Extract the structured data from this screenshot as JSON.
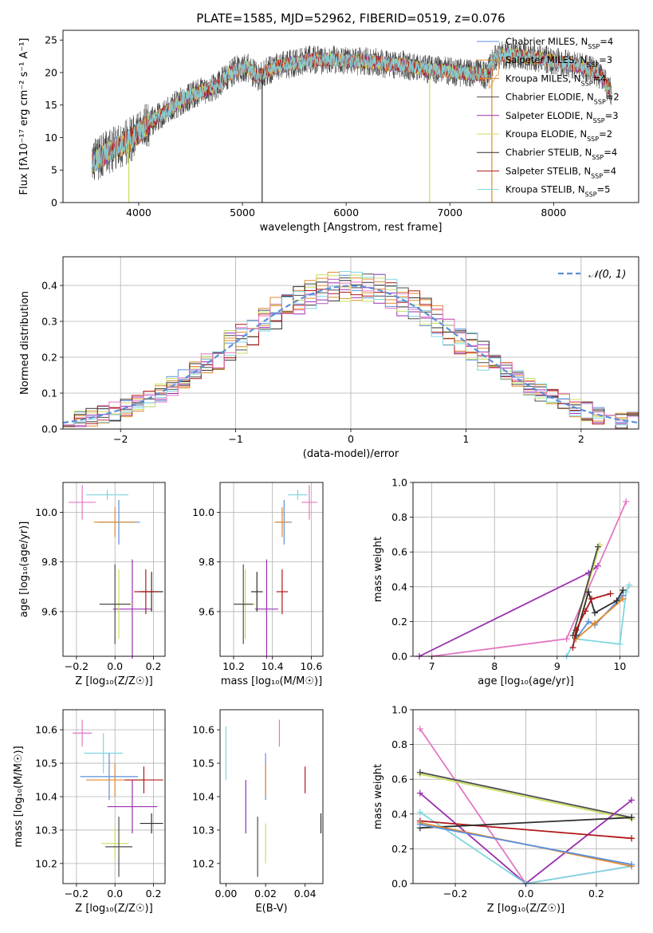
{
  "figure_title": "PLATE=1585, MJD=52962, FIBERID=0519, z=0.076",
  "colors": {
    "chabrier_miles": "#5b8fe0",
    "salpeter_miles": "#e08a2c",
    "kroupa_miles": "#e08a2c",
    "chabrier_elodie": "#4d4d4d",
    "salpeter_elodie": "#9a2fb0",
    "kroupa_elodie": "#c8e060",
    "chabrier_stelib": "#2e2e2e",
    "salpeter_stelib": "#b01818",
    "kroupa_stelib": "#7fd6e0",
    "pink": "#e377c2",
    "gaussian": "#5b8fd8",
    "grid": "#b0b0b0"
  },
  "chart_data": [
    {
      "id": "spectrum",
      "type": "line",
      "title": "PLATE=1585, MJD=52962, FIBERID=0519, z=0.076",
      "xlabel": "wavelength [Angstrom, rest frame]",
      "ylabel": "Flux [fλ10⁻¹⁷ erg cm⁻² s⁻¹ A⁻¹]",
      "xlim": [
        3270,
        8820
      ],
      "ylim": [
        0,
        26.5
      ],
      "xticks": [
        4000,
        5000,
        6000,
        7000,
        8000
      ],
      "yticks": [
        0,
        5,
        10,
        15,
        20,
        25
      ],
      "grid": false,
      "legend_position": "right",
      "anchors": {
        "x": [
          3550,
          3650,
          3750,
          3850,
          3950,
          4050,
          4150,
          4250,
          4350,
          4450,
          4550,
          4650,
          4750,
          4850,
          4950,
          5050,
          5150,
          5250,
          5350,
          5450,
          5550,
          5650,
          5750,
          5850,
          5950,
          6050,
          6150,
          6250,
          6350,
          6450,
          6550,
          6650,
          6750,
          6850,
          6950,
          7050,
          7150,
          7250,
          7350,
          7450,
          7550,
          7650,
          7750,
          7850,
          7950,
          8050,
          8150,
          8250,
          8350,
          8450,
          8550
        ],
        "y": [
          6.0,
          7.2,
          8.2,
          9.0,
          10.0,
          11.5,
          12.8,
          13.8,
          15.0,
          16.0,
          16.8,
          17.3,
          17.8,
          19.5,
          20.5,
          20.8,
          19.2,
          20.3,
          21.0,
          21.3,
          21.6,
          22.0,
          21.9,
          22.0,
          21.9,
          21.8,
          21.7,
          21.7,
          21.4,
          21.2,
          21.2,
          20.8,
          20.6,
          20.4,
          20.3,
          20.1,
          19.9,
          19.8,
          19.6,
          22.6,
          22.7,
          22.6,
          22.4,
          22.2,
          21.9,
          21.6,
          21.3,
          21.0,
          20.5,
          19.6,
          17.0
        ]
      },
      "series": [
        {
          "name": "Chabrier MILES, N_SSP=4",
          "sub": "SSP",
          "value": "=4",
          "label": "Chabrier MILES, N",
          "color_key": "chabrier_miles"
        },
        {
          "name": "Salpeter MILES, N_SSP=3",
          "sub": "SSP",
          "value": "=3",
          "label": "Salpeter MILES, N",
          "color_key": "salpeter_miles"
        },
        {
          "name": "Kroupa MILES, N_SSP=4",
          "sub": "SSP",
          "value": "=4",
          "label": "Kroupa MILES, N",
          "color_key": "kroupa_miles"
        },
        {
          "name": "Chabrier ELODIE, N_SSP=2",
          "sub": "SSP",
          "value": "=2",
          "label": "Chabrier ELODIE, N",
          "color_key": "chabrier_elodie"
        },
        {
          "name": "Salpeter ELODIE, N_SSP=3",
          "sub": "SSP",
          "value": "=3",
          "label": "Salpeter ELODIE, N",
          "color_key": "salpeter_elodie"
        },
        {
          "name": "Kroupa ELODIE, N_SSP=2",
          "sub": "SSP",
          "value": "=2",
          "label": "Kroupa ELODIE, N",
          "color_key": "kroupa_elodie"
        },
        {
          "name": "Chabrier STELIB, N_SSP=4",
          "sub": "SSP",
          "value": "=4",
          "label": "Chabrier STELIB, N",
          "color_key": "chabrier_stelib"
        },
        {
          "name": "Salpeter STELIB, N_SSP=4",
          "sub": "SSP",
          "value": "=4",
          "label": "Salpeter STELIB, N",
          "color_key": "salpeter_stelib"
        },
        {
          "name": "Kroupa STELIB, N_SSP=5",
          "sub": "SSP",
          "value": "=5",
          "label": "Kroupa STELIB, N",
          "color_key": "kroupa_stelib"
        }
      ]
    },
    {
      "id": "residuals",
      "type": "histogram",
      "xlabel": "(data-model)/error",
      "ylabel": "Normed distribution",
      "xlim": [
        -2.5,
        2.5
      ],
      "ylim": [
        0,
        0.48
      ],
      "xticks": [
        -2,
        -1,
        0,
        1,
        2
      ],
      "yticks": [
        0.0,
        0.1,
        0.2,
        0.3,
        0.4
      ],
      "grid": true,
      "legend_position": "top-right",
      "legend_label": "𝒩(0, 1)",
      "bin_width": 0.1,
      "series_color_keys": [
        "chabrier_miles",
        "salpeter_miles",
        "kroupa_miles",
        "chabrier_elodie",
        "salpeter_elodie",
        "kroupa_elodie",
        "chabrier_stelib",
        "salpeter_stelib",
        "kroupa_stelib"
      ]
    },
    {
      "id": "age_vs_Z",
      "type": "scatter",
      "xlabel": "Z [log₁₀(Z/Z☉)]",
      "ylabel": "age  [log₁₀(age/yr)]",
      "xlim": [
        -0.27,
        0.26
      ],
      "ylim": [
        9.42,
        10.12
      ],
      "xticks": [
        -0.2,
        0.0,
        0.2
      ],
      "yticks": [
        9.6,
        9.8,
        10.0
      ],
      "grid": true,
      "points": [
        {
          "x": -0.17,
          "y": 10.04,
          "xerr": 0.07,
          "yerr": 0.07,
          "color_key": "pink"
        },
        {
          "x": -0.04,
          "y": 10.07,
          "xerr": 0.11,
          "yerr": 0.02,
          "color_key": "kroupa_stelib"
        },
        {
          "x": 0.02,
          "y": 9.96,
          "xerr": 0.11,
          "yerr": 0.09,
          "color_key": "chabrier_miles"
        },
        {
          "x": 0.0,
          "y": 9.96,
          "xerr": 0.11,
          "yerr": 0.06,
          "color_key": "salpeter_miles"
        },
        {
          "x": 0.09,
          "y": 9.61,
          "xerr": 0.1,
          "yerr": 0.2,
          "color_key": "salpeter_elodie"
        },
        {
          "x": 0.19,
          "y": 9.68,
          "xerr": 0.06,
          "yerr": 0.08,
          "color_key": "chabrier_stelib"
        },
        {
          "x": 0.16,
          "y": 9.68,
          "xerr": 0.06,
          "yerr": 0.09,
          "color_key": "salpeter_stelib"
        },
        {
          "x": 0.02,
          "y": 9.63,
          "xerr": 0.08,
          "yerr": 0.14,
          "color_key": "kroupa_elodie"
        },
        {
          "x": 0.0,
          "y": 9.63,
          "xerr": 0.08,
          "yerr": 0.16,
          "color_key": "chabrier_elodie"
        }
      ]
    },
    {
      "id": "age_vs_mass",
      "type": "scatter",
      "xlabel": "mass [log₁₀(M/M☉)]",
      "ylabel": "",
      "xlim": [
        10.13,
        10.66
      ],
      "ylim": [
        9.42,
        10.12
      ],
      "xticks": [
        10.2,
        10.4,
        10.6
      ],
      "yticks": [
        9.6,
        9.8,
        10.0
      ],
      "grid": true,
      "points": [
        {
          "x": 10.59,
          "y": 10.04,
          "xerr": 0.04,
          "yerr": 0.07,
          "color_key": "pink"
        },
        {
          "x": 10.53,
          "y": 10.07,
          "xerr": 0.05,
          "yerr": 0.02,
          "color_key": "kroupa_stelib"
        },
        {
          "x": 10.46,
          "y": 9.96,
          "xerr": 0.04,
          "yerr": 0.09,
          "color_key": "chabrier_miles"
        },
        {
          "x": 10.45,
          "y": 9.96,
          "xerr": 0.04,
          "yerr": 0.06,
          "color_key": "salpeter_miles"
        },
        {
          "x": 10.37,
          "y": 9.61,
          "xerr": 0.06,
          "yerr": 0.2,
          "color_key": "salpeter_elodie"
        },
        {
          "x": 10.32,
          "y": 9.68,
          "xerr": 0.03,
          "yerr": 0.08,
          "color_key": "chabrier_stelib"
        },
        {
          "x": 10.45,
          "y": 9.68,
          "xerr": 0.03,
          "yerr": 0.09,
          "color_key": "salpeter_stelib"
        },
        {
          "x": 10.26,
          "y": 9.63,
          "xerr": 0.05,
          "yerr": 0.14,
          "color_key": "kroupa_elodie"
        },
        {
          "x": 10.25,
          "y": 9.63,
          "xerr": 0.05,
          "yerr": 0.16,
          "color_key": "chabrier_elodie"
        }
      ]
    },
    {
      "id": "weight_vs_age",
      "type": "line",
      "xlabel": "age  [log₁₀(age/yr)]",
      "ylabel": "mass weight",
      "xlim": [
        6.7,
        10.3
      ],
      "ylim": [
        0,
        1.0
      ],
      "xticks": [
        7,
        8,
        9,
        10
      ],
      "yticks": [
        0.0,
        0.2,
        0.4,
        0.6,
        0.8,
        1.0
      ],
      "grid": true,
      "series": [
        {
          "color_key": "salpeter_elodie",
          "x": [
            6.8,
            9.5,
            9.65
          ],
          "y": [
            0.0,
            0.48,
            0.52
          ]
        },
        {
          "color_key": "pink",
          "x": [
            7.0,
            9.15,
            10.1
          ],
          "y": [
            0.0,
            0.1,
            0.89
          ]
        },
        {
          "color_key": "kroupa_stelib",
          "x": [
            9.15,
            9.3,
            10.0,
            10.1,
            10.15
          ],
          "y": [
            0.0,
            0.1,
            0.07,
            0.37,
            0.41
          ]
        },
        {
          "color_key": "chabrier_miles",
          "x": [
            9.3,
            9.5,
            9.6,
            10.05
          ],
          "y": [
            0.1,
            0.2,
            0.18,
            0.35
          ]
        },
        {
          "color_key": "salpeter_miles",
          "x": [
            9.3,
            9.6,
            10.05
          ],
          "y": [
            0.1,
            0.19,
            0.33
          ]
        },
        {
          "color_key": "kroupa_elodie",
          "x": [
            9.25,
            9.68
          ],
          "y": [
            0.12,
            0.64
          ]
        },
        {
          "color_key": "chabrier_elodie",
          "x": [
            9.25,
            9.65
          ],
          "y": [
            0.12,
            0.63
          ]
        },
        {
          "color_key": "chabrier_stelib",
          "x": [
            9.3,
            9.5,
            9.6,
            9.95,
            10.05
          ],
          "y": [
            0.12,
            0.37,
            0.25,
            0.32,
            0.38
          ]
        },
        {
          "color_key": "salpeter_stelib",
          "x": [
            9.25,
            9.3,
            9.45,
            9.55,
            9.85
          ],
          "y": [
            0.05,
            0.15,
            0.26,
            0.33,
            0.36
          ]
        }
      ]
    },
    {
      "id": "mass_vs_Z",
      "type": "scatter",
      "xlabel": "Z [log₁₀(Z/Z☉)]",
      "ylabel": "mass [log₁₀(M/M☉)]",
      "xlim": [
        -0.27,
        0.26
      ],
      "ylim": [
        10.14,
        10.66
      ],
      "xticks": [
        -0.2,
        0.0,
        0.2
      ],
      "yticks": [
        10.2,
        10.3,
        10.4,
        10.5,
        10.6
      ],
      "grid": true,
      "points": [
        {
          "x": -0.17,
          "y": 10.59,
          "xerr": 0.05,
          "yerr": 0.04,
          "color_key": "pink"
        },
        {
          "x": -0.06,
          "y": 10.53,
          "xerr": 0.1,
          "yerr": 0.06,
          "color_key": "kroupa_stelib"
        },
        {
          "x": -0.03,
          "y": 10.46,
          "xerr": 0.15,
          "yerr": 0.07,
          "color_key": "chabrier_miles"
        },
        {
          "x": 0.0,
          "y": 10.45,
          "xerr": 0.15,
          "yerr": 0.05,
          "color_key": "salpeter_miles"
        },
        {
          "x": 0.09,
          "y": 10.37,
          "xerr": 0.13,
          "yerr": 0.08,
          "color_key": "salpeter_elodie"
        },
        {
          "x": 0.19,
          "y": 10.32,
          "xerr": 0.06,
          "yerr": 0.03,
          "color_key": "chabrier_stelib"
        },
        {
          "x": 0.15,
          "y": 10.45,
          "xerr": 0.1,
          "yerr": 0.04,
          "color_key": "salpeter_stelib"
        },
        {
          "x": 0.0,
          "y": 10.26,
          "xerr": 0.07,
          "yerr": 0.05,
          "color_key": "kroupa_elodie"
        },
        {
          "x": 0.02,
          "y": 10.25,
          "xerr": 0.07,
          "yerr": 0.09,
          "color_key": "chabrier_elodie"
        }
      ]
    },
    {
      "id": "mass_vs_ebv",
      "type": "scatter",
      "xlabel": "E(B-V)",
      "ylabel": "",
      "xlim": [
        -0.003,
        0.049
      ],
      "ylim": [
        10.14,
        10.66
      ],
      "xticks": [
        0.0,
        0.02,
        0.04
      ],
      "yticks": [
        10.2,
        10.3,
        10.4,
        10.5,
        10.6
      ],
      "grid": false,
      "points": [
        {
          "x": 0.027,
          "y": 10.59,
          "yerr": 0.04,
          "color_key": "pink"
        },
        {
          "x": 0.0,
          "y": 10.53,
          "yerr": 0.08,
          "color_key": "kroupa_stelib"
        },
        {
          "x": 0.02,
          "y": 10.46,
          "yerr": 0.07,
          "color_key": "chabrier_miles"
        },
        {
          "x": 0.02,
          "y": 10.45,
          "yerr": 0.05,
          "color_key": "salpeter_miles"
        },
        {
          "x": 0.01,
          "y": 10.37,
          "yerr": 0.08,
          "color_key": "salpeter_elodie"
        },
        {
          "x": 0.048,
          "y": 10.32,
          "yerr": 0.03,
          "color_key": "chabrier_stelib"
        },
        {
          "x": 0.04,
          "y": 10.45,
          "yerr": 0.04,
          "color_key": "salpeter_stelib"
        },
        {
          "x": 0.02,
          "y": 10.26,
          "yerr": 0.06,
          "color_key": "kroupa_elodie"
        },
        {
          "x": 0.016,
          "y": 10.25,
          "yerr": 0.09,
          "color_key": "chabrier_elodie"
        }
      ]
    },
    {
      "id": "weight_vs_Z",
      "type": "line",
      "xlabel": "Z [log₁₀(Z/Z☉)]",
      "ylabel": "mass weight",
      "xlim": [
        -0.32,
        0.32
      ],
      "ylim": [
        0,
        1.0
      ],
      "xticks": [
        -0.2,
        0.0,
        0.2
      ],
      "yticks": [
        0.0,
        0.2,
        0.4,
        0.6,
        0.8,
        1.0
      ],
      "grid": true,
      "series": [
        {
          "color_key": "pink",
          "x": [
            -0.3,
            0.0,
            0.3
          ],
          "y": [
            0.89,
            0.0,
            0.1
          ]
        },
        {
          "color_key": "kroupa_elodie",
          "x": [
            -0.3,
            0.3
          ],
          "y": [
            0.63,
            0.37
          ]
        },
        {
          "color_key": "chabrier_elodie",
          "x": [
            -0.3,
            0.3
          ],
          "y": [
            0.64,
            0.38
          ]
        },
        {
          "color_key": "salpeter_elodie",
          "x": [
            -0.3,
            0.0,
            0.3
          ],
          "y": [
            0.52,
            0.0,
            0.48
          ]
        },
        {
          "color_key": "kroupa_stelib",
          "x": [
            -0.3,
            0.0,
            0.3
          ],
          "y": [
            0.41,
            0.0,
            0.1
          ]
        },
        {
          "color_key": "salpeter_stelib",
          "x": [
            -0.3,
            0.3
          ],
          "y": [
            0.36,
            0.26
          ]
        },
        {
          "color_key": "chabrier_stelib",
          "x": [
            -0.3,
            0.3
          ],
          "y": [
            0.32,
            0.38
          ]
        },
        {
          "color_key": "salpeter_miles",
          "x": [
            -0.3,
            0.3
          ],
          "y": [
            0.35,
            0.1
          ]
        },
        {
          "color_key": "chabrier_miles",
          "x": [
            -0.3,
            0.3
          ],
          "y": [
            0.34,
            0.11
          ]
        }
      ]
    }
  ]
}
